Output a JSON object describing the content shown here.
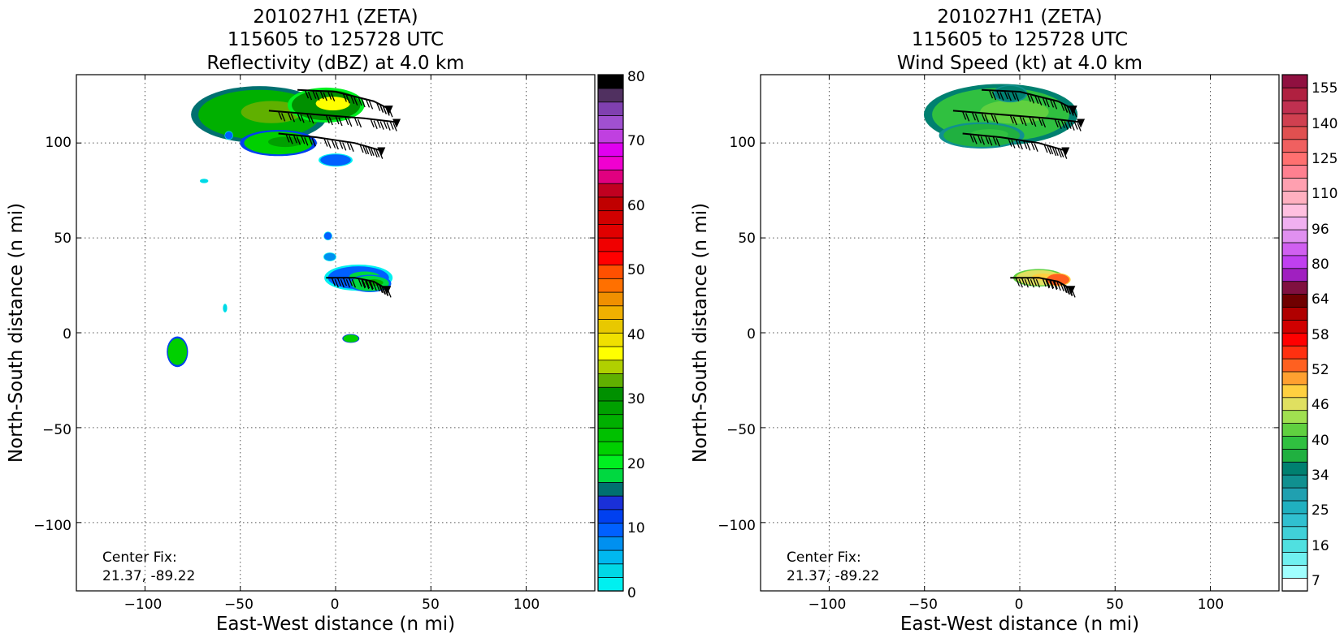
{
  "charts": [
    {
      "id": "reflectivity",
      "title_lines": [
        "201027H1 (ZETA)",
        "115605 to 125728 UTC",
        "Reflectivity (dBZ) at 4.0 km"
      ],
      "xlabel": "East-West distance (n mi)",
      "ylabel": "North-South distance (n mi)",
      "note_lines": [
        "Center Fix:",
        "21.37, -89.22"
      ],
      "x_ticks": [
        "−100",
        "−50",
        "0",
        "50",
        "100"
      ],
      "y_ticks": [
        "100",
        "50",
        "0",
        "−50",
        "−100"
      ],
      "colorbar_labels": [
        "80",
        "70",
        "60",
        "50",
        "40",
        "30",
        "20",
        "10",
        "0"
      ]
    },
    {
      "id": "windspeed",
      "title_lines": [
        "201027H1 (ZETA)",
        "115605 to 125728 UTC",
        "Wind Speed (kt) at 4.0 km"
      ],
      "xlabel": "East-West distance (n mi)",
      "ylabel": "North-South distance (n mi)",
      "note_lines": [
        "Center Fix:",
        "21.37, -89.22"
      ],
      "x_ticks": [
        "−100",
        "−50",
        "0",
        "50",
        "100"
      ],
      "y_ticks": [
        "100",
        "50",
        "0",
        "−50",
        "−100"
      ],
      "colorbar_labels": [
        "155",
        "140",
        "125",
        "110",
        "96",
        "80",
        "64",
        "58",
        "52",
        "46",
        "40",
        "34",
        "25",
        "16",
        "7"
      ]
    }
  ],
  "chart_data": [
    {
      "type": "heatmap",
      "title": "201027H1 (ZETA) 115605 to 125728 UTC Reflectivity (dBZ) at 4.0 km",
      "xlabel": "East-West distance (n mi)",
      "ylabel": "North-South distance (n mi)",
      "xlim": [
        -136,
        136
      ],
      "ylim": [
        -136,
        136
      ],
      "x_ticks": [
        -100,
        -50,
        0,
        50,
        100
      ],
      "y_ticks": [
        -100,
        -50,
        0,
        50,
        100
      ],
      "grid": true,
      "colorbar": {
        "min": 0,
        "max": 80,
        "step": 2.5,
        "tick_values": [
          0,
          10,
          20,
          30,
          40,
          50,
          60,
          70,
          80
        ],
        "colors": [
          "#00f0f0",
          "#00d8e6",
          "#00b8f0",
          "#0090f0",
          "#0060ff",
          "#0040f0",
          "#1a30d8",
          "#007070",
          "#00d840",
          "#00f020",
          "#00d000",
          "#00c000",
          "#00b000",
          "#00a000",
          "#009000",
          "#60b000",
          "#b0d000",
          "#ffff00",
          "#f0e000",
          "#e8c800",
          "#f0b000",
          "#f09000",
          "#ff7000",
          "#ff5000",
          "#ff0000",
          "#f00000",
          "#e00000",
          "#d00000",
          "#c00000",
          "#c00020",
          "#e00080",
          "#f000d0",
          "#e000f0",
          "#c040e0",
          "#a050d0",
          "#8040b0",
          "#503060",
          "#000000"
        ]
      },
      "echo_regions": [
        {
          "x": -40,
          "y": 115,
          "rx": 32,
          "ry": 13,
          "dominant_dbz": 30
        },
        {
          "x": -5,
          "y": 120,
          "rx": 18,
          "ry": 8,
          "dominant_dbz": 36
        },
        {
          "x": -30,
          "y": 100,
          "rx": 18,
          "ry": 6,
          "dominant_dbz": 26
        },
        {
          "x": 0,
          "y": 91,
          "rx": 8,
          "ry": 3,
          "dominant_dbz": 12
        },
        {
          "x": 12,
          "y": 29,
          "rx": 16,
          "ry": 6,
          "dominant_dbz": 12
        },
        {
          "x": 18,
          "y": 26,
          "rx": 10,
          "ry": 4,
          "dominant_dbz": 22
        },
        {
          "x": -3,
          "y": 40,
          "rx": 3,
          "ry": 2,
          "dominant_dbz": 8
        },
        {
          "x": -83,
          "y": -10,
          "rx": 5,
          "ry": 7,
          "dominant_dbz": 26
        },
        {
          "x": -69,
          "y": 80,
          "rx": 2,
          "ry": 1,
          "dominant_dbz": 4
        },
        {
          "x": -58,
          "y": 13,
          "rx": 1,
          "ry": 2,
          "dominant_dbz": 4
        },
        {
          "x": 8,
          "y": -3,
          "rx": 4,
          "ry": 2,
          "dominant_dbz": 26
        },
        {
          "x": -4,
          "y": 51,
          "rx": 2,
          "ry": 2,
          "dominant_dbz": 10
        },
        {
          "x": -56,
          "y": 104,
          "rx": 2,
          "ry": 2,
          "dominant_dbz": 10
        }
      ],
      "flight_tracks": [
        {
          "points": [
            [
              -20,
              128
            ],
            [
              0,
              127
            ],
            [
              20,
              122
            ],
            [
              28,
              118
            ]
          ]
        },
        {
          "points": [
            [
              -35,
              117
            ],
            [
              -10,
              115
            ],
            [
              15,
              113
            ],
            [
              32,
              111
            ]
          ]
        },
        {
          "points": [
            [
              -30,
              105
            ],
            [
              -10,
              103
            ],
            [
              10,
              100
            ],
            [
              24,
              96
            ]
          ]
        },
        {
          "points": [
            [
              -5,
              29
            ],
            [
              10,
              29
            ],
            [
              20,
              27
            ],
            [
              27,
              23
            ]
          ]
        }
      ]
    },
    {
      "type": "heatmap",
      "title": "201027H1 (ZETA) 115605 to 125728 UTC Wind Speed (kt) at 4.0 km",
      "xlabel": "East-West distance (n mi)",
      "ylabel": "North-South distance (n mi)",
      "xlim": [
        -136,
        136
      ],
      "ylim": [
        -136,
        136
      ],
      "x_ticks": [
        -100,
        -50,
        0,
        50,
        100
      ],
      "y_ticks": [
        -100,
        -50,
        0,
        50,
        100
      ],
      "grid": true,
      "colorbar": {
        "tick_values": [
          7,
          16,
          25,
          34,
          40,
          46,
          52,
          58,
          64,
          80,
          96,
          110,
          125,
          140,
          155
        ],
        "colors": [
          "#ffffff",
          "#a0ffff",
          "#70f0f0",
          "#50e0e0",
          "#40d0d8",
          "#30c0d0",
          "#20b0c0",
          "#20a0b0",
          "#109090",
          "#008070",
          "#20b040",
          "#30c040",
          "#60d040",
          "#a0e050",
          "#e0e060",
          "#ffd040",
          "#ffa030",
          "#ff6020",
          "#ff3010",
          "#ff0000",
          "#d00000",
          "#b00000",
          "#700000",
          "#801040",
          "#a020c0",
          "#c040f0",
          "#d060f0",
          "#e090f0",
          "#f0b0f0",
          "#ffc0e0",
          "#ffb0c0",
          "#ffa0b0",
          "#ff8090",
          "#ff7070",
          "#f06060",
          "#e05050",
          "#d04050",
          "#c03050",
          "#b02040",
          "#901040"
        ]
      },
      "echo_regions": [
        {
          "x": -10,
          "y": 115,
          "rx": 36,
          "ry": 14,
          "dominant_kt": 40
        },
        {
          "x": -5,
          "y": 126,
          "rx": 8,
          "ry": 4,
          "dominant_kt": 36
        },
        {
          "x": -20,
          "y": 104,
          "rx": 20,
          "ry": 6,
          "dominant_kt": 38
        },
        {
          "x": 10,
          "y": 29,
          "rx": 12,
          "ry": 4,
          "dominant_kt": 46
        },
        {
          "x": 20,
          "y": 28,
          "rx": 6,
          "ry": 3,
          "dominant_kt": 52
        }
      ],
      "flight_tracks": [
        {
          "points": [
            [
              -20,
              128
            ],
            [
              0,
              127
            ],
            [
              20,
              122
            ],
            [
              28,
              118
            ]
          ]
        },
        {
          "points": [
            [
              -35,
              117
            ],
            [
              -10,
              115
            ],
            [
              15,
              113
            ],
            [
              32,
              111
            ]
          ]
        },
        {
          "points": [
            [
              -30,
              105
            ],
            [
              -10,
              103
            ],
            [
              10,
              100
            ],
            [
              24,
              96
            ]
          ]
        },
        {
          "points": [
            [
              -5,
              29
            ],
            [
              10,
              29
            ],
            [
              20,
              27
            ],
            [
              27,
              23
            ]
          ]
        }
      ]
    }
  ]
}
